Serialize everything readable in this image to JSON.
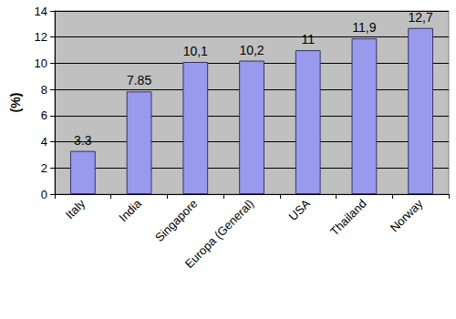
{
  "chart_data": {
    "type": "bar",
    "y_label": "(%)",
    "categories": [
      "Italy",
      "India",
      "Singapore",
      "Europa (General)",
      "USA",
      "Thailand",
      "Norway"
    ],
    "values": [
      3.3,
      7.85,
      10.1,
      10.2,
      11,
      11.9,
      12.7
    ],
    "value_labels": [
      "3.3",
      "7.85",
      "10,1",
      "10,2",
      "11",
      "11,9",
      "12,7"
    ],
    "color": "#9999ee",
    "ylim": [
      0,
      14
    ],
    "yticks": [
      0,
      2,
      4,
      6,
      8,
      10,
      12,
      14
    ],
    "grid": true,
    "data_labels": true
  }
}
